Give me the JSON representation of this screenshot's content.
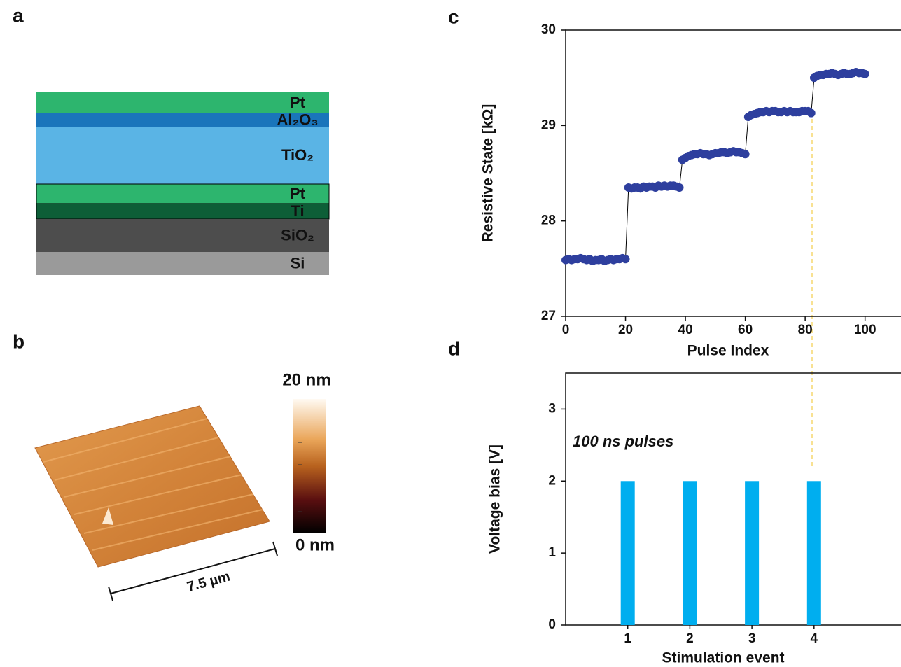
{
  "panel_labels": [
    "a",
    "b",
    "c",
    "d"
  ],
  "layer_stack": {
    "layers": [
      {
        "label": "Pt",
        "color": "#2db56e"
      },
      {
        "label": "Al₂O₃",
        "color": "#1a75bb"
      },
      {
        "label": "TiO₂",
        "color": "#5ab4e5"
      },
      {
        "label": "Pt",
        "color": "#2db56e"
      },
      {
        "label": "Ti",
        "color": "#0d5e37"
      },
      {
        "label": "SiO₂",
        "color": "#4d4d4d"
      },
      {
        "label": "Si",
        "color": "#9a9a9a"
      }
    ]
  },
  "afm": {
    "scale_max": "20 nm",
    "scale_min": "0 nm",
    "scale_bar": "7.5 µm"
  },
  "chart_data": [
    {
      "type": "line",
      "xlabel": "Pulse Index",
      "ylabel": "Resistive State [kΩ]",
      "x": [
        0,
        1,
        2,
        3,
        4,
        5,
        6,
        7,
        8,
        9,
        10,
        11,
        12,
        13,
        14,
        15,
        16,
        17,
        18,
        19,
        20,
        21,
        22,
        23,
        24,
        25,
        26,
        27,
        28,
        29,
        30,
        31,
        32,
        33,
        34,
        35,
        36,
        37,
        38,
        39,
        40,
        41,
        42,
        43,
        44,
        45,
        46,
        47,
        48,
        49,
        50,
        51,
        52,
        53,
        54,
        55,
        56,
        57,
        58,
        59,
        60,
        61,
        62,
        63,
        64,
        65,
        66,
        67,
        68,
        69,
        70,
        71,
        72,
        73,
        74,
        75,
        76,
        77,
        78,
        79,
        80,
        81,
        82,
        83,
        84,
        85,
        86,
        87,
        88,
        89,
        90,
        91,
        92,
        93,
        94,
        95,
        96,
        97,
        98,
        99,
        100
      ],
      "values": [
        27.59,
        27.6,
        27.59,
        27.6,
        27.6,
        27.61,
        27.6,
        27.59,
        27.6,
        27.58,
        27.59,
        27.59,
        27.6,
        27.58,
        27.59,
        27.6,
        27.59,
        27.6,
        27.6,
        27.61,
        27.6,
        28.35,
        28.34,
        28.35,
        28.35,
        28.34,
        28.36,
        28.35,
        28.36,
        28.36,
        28.35,
        28.37,
        28.36,
        28.37,
        28.36,
        28.37,
        28.37,
        28.36,
        28.35,
        28.64,
        28.66,
        28.68,
        28.69,
        28.7,
        28.7,
        28.71,
        28.7,
        28.7,
        28.69,
        28.7,
        28.71,
        28.71,
        28.72,
        28.72,
        28.71,
        28.72,
        28.73,
        28.72,
        28.72,
        28.71,
        28.7,
        29.09,
        29.11,
        29.12,
        29.13,
        29.14,
        29.14,
        29.15,
        29.14,
        29.15,
        29.15,
        29.14,
        29.14,
        29.15,
        29.14,
        29.15,
        29.14,
        29.14,
        29.14,
        29.15,
        29.15,
        29.15,
        29.13,
        29.5,
        29.52,
        29.53,
        29.53,
        29.54,
        29.54,
        29.55,
        29.54,
        29.53,
        29.54,
        29.55,
        29.54,
        29.54,
        29.55,
        29.56,
        29.55,
        29.55,
        29.54
      ],
      "color": "#2e3f9e",
      "line_color": "#000000",
      "xlim": [
        0,
        112
      ],
      "xticks": [
        0,
        20,
        40,
        60,
        80,
        100
      ],
      "ylim": [
        27,
        30
      ],
      "yticks": [
        27,
        28,
        29,
        30
      ]
    },
    {
      "type": "bar",
      "xlabel": "Stimulation  event",
      "ylabel": "Voltage bias [V]",
      "annotation": "100 ns pulses",
      "x": [
        1,
        2,
        3,
        4
      ],
      "values": [
        2,
        2,
        2,
        2
      ],
      "color": "#00aeef",
      "xlim": [
        0,
        5.4
      ],
      "xticks": [
        1,
        2,
        3,
        4
      ],
      "ylim": [
        0,
        3.5
      ],
      "yticks": [
        0,
        1,
        2,
        3
      ]
    }
  ]
}
